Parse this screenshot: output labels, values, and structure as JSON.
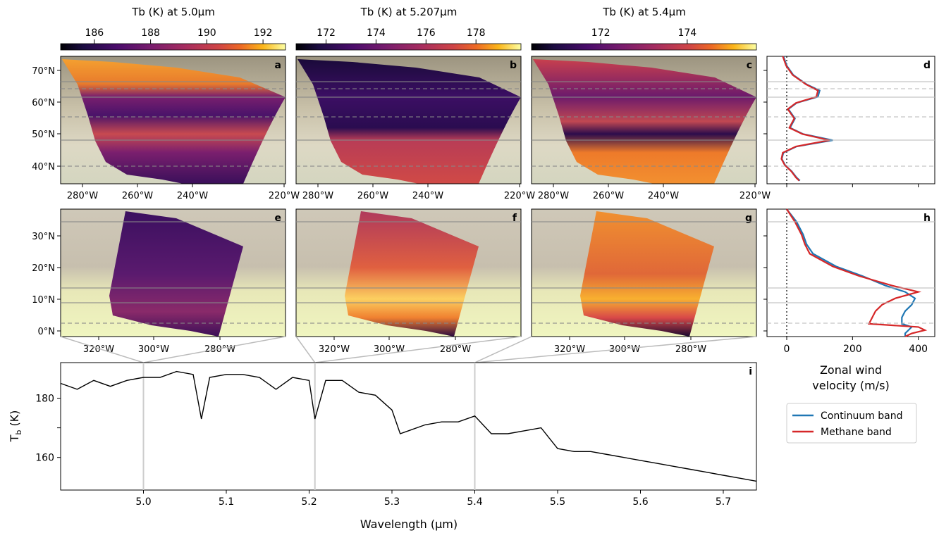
{
  "colorbars": [
    {
      "title": "Tb (K) at 5.0μm",
      "ticks": [
        "186",
        "188",
        "190",
        "192"
      ],
      "tick_values": [
        186,
        188,
        190,
        192
      ],
      "range": [
        184.8,
        192.8
      ]
    },
    {
      "title": "Tb (K) at 5.207μm",
      "ticks": [
        "172",
        "174",
        "176",
        "178"
      ],
      "tick_values": [
        172,
        174,
        176,
        178
      ],
      "range": [
        170.8,
        179.8
      ]
    },
    {
      "title": "Tb (K) at 5.4μm",
      "ticks": [
        "172",
        "174"
      ],
      "tick_values": [
        172,
        174
      ],
      "range": [
        170.4,
        175.6
      ]
    }
  ],
  "panels": {
    "top_row": {
      "letters": [
        "a",
        "b",
        "c"
      ],
      "lat_ticks": [
        "70°N",
        "60°N",
        "50°N",
        "40°N"
      ],
      "lon_ticks": [
        "280°W",
        "260°W",
        "240°W",
        "220°W"
      ]
    },
    "middle_row": {
      "letters": [
        "e",
        "f",
        "g"
      ],
      "lat_ticks": [
        "30°N",
        "20°N",
        "10°N",
        "0°N"
      ],
      "lon_ticks": [
        "320°W",
        "300°W",
        "280°W"
      ]
    },
    "wind_letters": [
      "d",
      "h"
    ],
    "wind_xticks": [
      "0",
      "200",
      "400"
    ],
    "wind_xlabel_line1": "Zonal wind",
    "wind_xlabel_line2": "velocity (m/s)",
    "spectrum_letter": "i"
  },
  "legend": {
    "entries": [
      {
        "label": "Continuum band",
        "color": "#1f77b4"
      },
      {
        "label": "Methane band",
        "color": "#d62728"
      }
    ]
  },
  "chart_data": [
    {
      "type": "line",
      "panel": "i",
      "xlabel": "Wavelength (μm)",
      "ylabel": "T",
      "ylabel_sub": "b",
      "ylabel_unit": " (K)",
      "xlim": [
        4.9,
        5.74
      ],
      "ylim": [
        149,
        192
      ],
      "xticks": [
        "5.0",
        "5.1",
        "5.2",
        "5.3",
        "5.4",
        "5.5",
        "5.6",
        "5.7"
      ],
      "xtick_values": [
        5.0,
        5.1,
        5.2,
        5.3,
        5.4,
        5.5,
        5.6,
        5.7
      ],
      "yticks": [
        "180",
        "170",
        "160"
      ],
      "ytick_values": [
        180,
        170,
        160
      ],
      "ytick_labels_shown": [
        "180",
        "160"
      ],
      "highlight_wavelengths": [
        5.0,
        5.207,
        5.4
      ],
      "series": [
        {
          "color": "#000000",
          "x": [
            4.9,
            4.92,
            4.94,
            4.96,
            4.98,
            5.0,
            5.02,
            5.04,
            5.06,
            5.07,
            5.08,
            5.1,
            5.12,
            5.14,
            5.16,
            5.18,
            5.2,
            5.207,
            5.22,
            5.24,
            5.26,
            5.28,
            5.3,
            5.31,
            5.32,
            5.34,
            5.36,
            5.38,
            5.4,
            5.42,
            5.44,
            5.46,
            5.48,
            5.5,
            5.52,
            5.54,
            5.56,
            5.58,
            5.6,
            5.62,
            5.64,
            5.66,
            5.68,
            5.7,
            5.72,
            5.74
          ],
          "y": [
            185,
            183,
            186,
            184,
            186,
            187,
            187,
            189,
            188,
            173,
            187,
            188,
            188,
            187,
            183,
            187,
            186,
            173,
            186,
            186,
            182,
            181,
            176,
            168,
            169,
            171,
            172,
            172,
            174,
            168,
            168,
            169,
            170,
            163,
            162,
            162,
            161,
            160,
            159,
            158,
            157,
            156,
            155,
            154,
            153,
            152
          ]
        }
      ]
    },
    {
      "type": "line",
      "panel": "d",
      "xlabel": "Zonal wind velocity (m/s)",
      "xlim": [
        -60,
        450
      ],
      "ylim": [
        34,
        75
      ],
      "ylabel": "Latitude",
      "series": [
        {
          "name": "Continuum band",
          "color": "#1f77b4",
          "lat": [
            75,
            72,
            69,
            66,
            64,
            62,
            60,
            58,
            55,
            52,
            50,
            48,
            46,
            44,
            42,
            40,
            38,
            36,
            35
          ],
          "u": [
            -10,
            0,
            20,
            60,
            100,
            95,
            30,
            5,
            25,
            10,
            50,
            140,
            30,
            -10,
            -15,
            -5,
            15,
            30,
            40
          ]
        },
        {
          "name": "Methane band",
          "color": "#d62728",
          "lat": [
            75,
            72,
            69,
            66,
            64,
            62,
            60,
            58,
            55,
            52,
            50,
            48,
            46,
            44,
            42,
            40,
            38,
            36,
            35
          ],
          "u": [
            -12,
            -2,
            18,
            58,
            95,
            90,
            28,
            3,
            23,
            8,
            48,
            130,
            28,
            -12,
            -16,
            -6,
            14,
            28,
            38
          ]
        }
      ]
    },
    {
      "type": "line",
      "panel": "h",
      "xlabel": "Zonal wind velocity (m/s)",
      "xlim": [
        -60,
        450
      ],
      "ylim": [
        -2,
        38
      ],
      "ylabel": "Latitude",
      "series": [
        {
          "name": "Continuum band",
          "color": "#1f77b4",
          "lat": [
            38,
            34,
            30,
            27,
            24,
            20,
            17,
            14,
            12,
            10,
            8,
            6,
            4,
            2,
            1,
            0,
            -1,
            -2
          ],
          "u": [
            0,
            30,
            50,
            60,
            80,
            150,
            230,
            300,
            360,
            390,
            380,
            360,
            350,
            350,
            380,
            370,
            360,
            360
          ]
        },
        {
          "name": "Methane band",
          "color": "#d62728",
          "lat": [
            38,
            34,
            30,
            27,
            24,
            20,
            17,
            14,
            12,
            10,
            8,
            6,
            4,
            2,
            1,
            0,
            -1,
            -2
          ],
          "u": [
            0,
            25,
            45,
            55,
            70,
            140,
            220,
            320,
            400,
            330,
            290,
            270,
            260,
            250,
            400,
            420,
            380,
            360
          ]
        }
      ]
    }
  ]
}
